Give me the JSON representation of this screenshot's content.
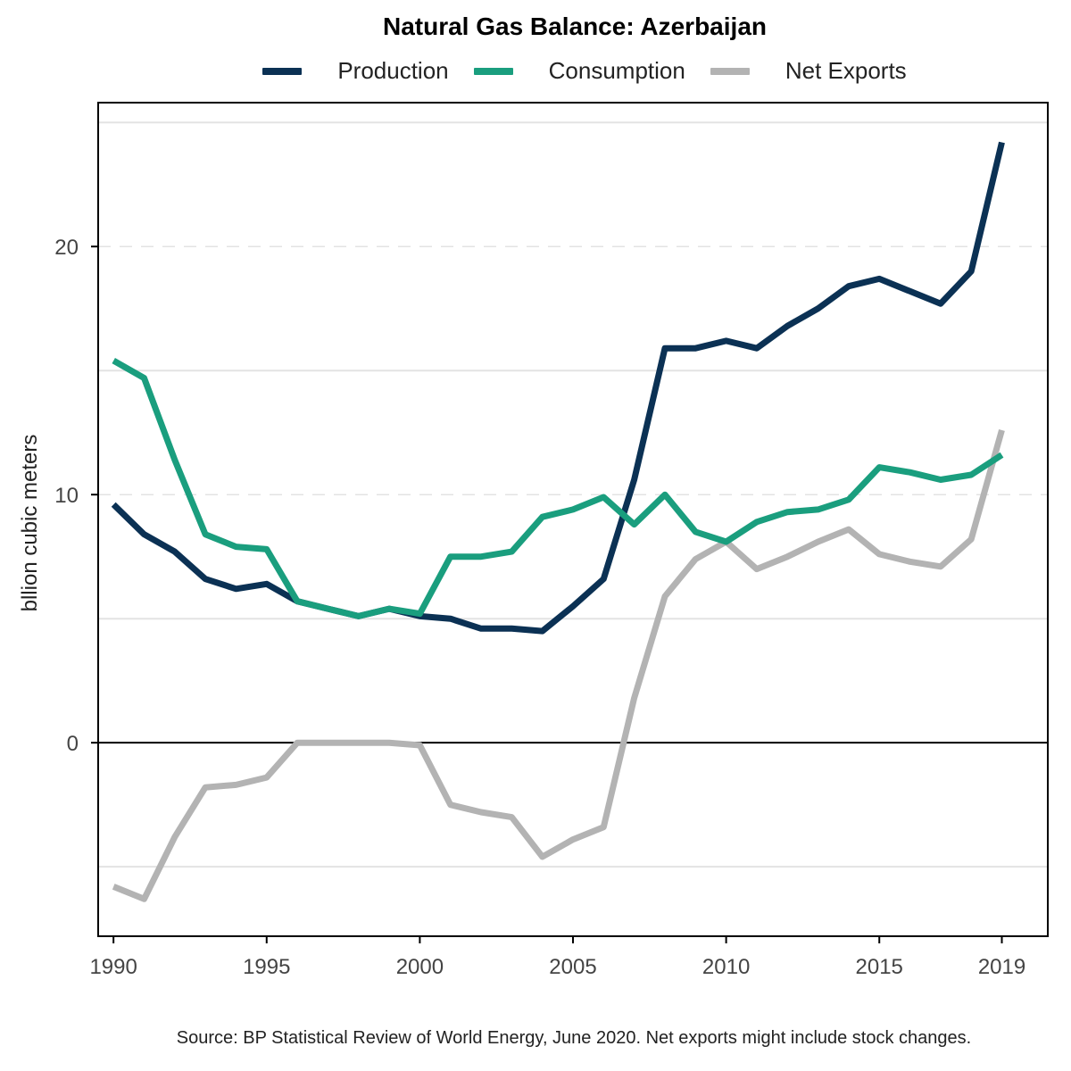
{
  "chart_data": {
    "type": "line",
    "title": "Natural Gas Balance: Azerbaijan",
    "xlabel": "",
    "ylabel": "bllion cubic meters",
    "source": "Source: BP Statistical Review of World Energy, June 2020. Net exports might include stock changes.",
    "xlim": [
      1989.5,
      2020.5
    ],
    "ylim": [
      -7.8,
      25.8
    ],
    "x_ticks": [
      1990,
      1995,
      2000,
      2005,
      2010,
      2015,
      2019
    ],
    "y_ticks": [
      0,
      10,
      20
    ],
    "minor_gridlines": [
      -5,
      5,
      15,
      25
    ],
    "major_gridlines": [
      10,
      20
    ],
    "zero_line": 0,
    "legend_position": "top",
    "x": [
      1990,
      1991,
      1992,
      1993,
      1994,
      1995,
      1996,
      1997,
      1998,
      1999,
      2000,
      2001,
      2002,
      2003,
      2004,
      2005,
      2006,
      2007,
      2008,
      2009,
      2010,
      2011,
      2012,
      2013,
      2014,
      2015,
      2016,
      2017,
      2018,
      2019
    ],
    "series": [
      {
        "name": "Production",
        "color": "#0b3154",
        "values": [
          9.6,
          8.4,
          7.7,
          6.6,
          6.2,
          6.4,
          5.7,
          5.4,
          5.1,
          5.4,
          5.1,
          5.0,
          4.6,
          4.6,
          4.5,
          5.5,
          6.6,
          10.6,
          15.9,
          15.9,
          16.2,
          15.9,
          16.8,
          17.5,
          18.4,
          18.7,
          18.2,
          17.7,
          19.0,
          24.2
        ]
      },
      {
        "name": "Consumption",
        "color": "#1a9e7e",
        "values": [
          15.4,
          14.7,
          11.4,
          8.4,
          7.9,
          7.8,
          5.7,
          5.4,
          5.1,
          5.4,
          5.2,
          7.5,
          7.5,
          7.7,
          9.1,
          9.4,
          9.9,
          8.8,
          10.0,
          8.5,
          8.1,
          8.9,
          9.3,
          9.4,
          9.8,
          11.1,
          10.9,
          10.6,
          10.8,
          11.6
        ]
      },
      {
        "name": "Net Exports",
        "color": "#b3b3b3",
        "values": [
          -5.8,
          -6.3,
          -3.8,
          -1.8,
          -1.7,
          -1.4,
          0.0,
          0.0,
          0.0,
          0.0,
          -0.1,
          -2.5,
          -2.8,
          -3.0,
          -4.6,
          -3.9,
          -3.4,
          1.8,
          5.9,
          7.4,
          8.1,
          7.0,
          7.5,
          8.1,
          8.6,
          7.6,
          7.3,
          7.1,
          8.2,
          12.6
        ]
      }
    ]
  }
}
